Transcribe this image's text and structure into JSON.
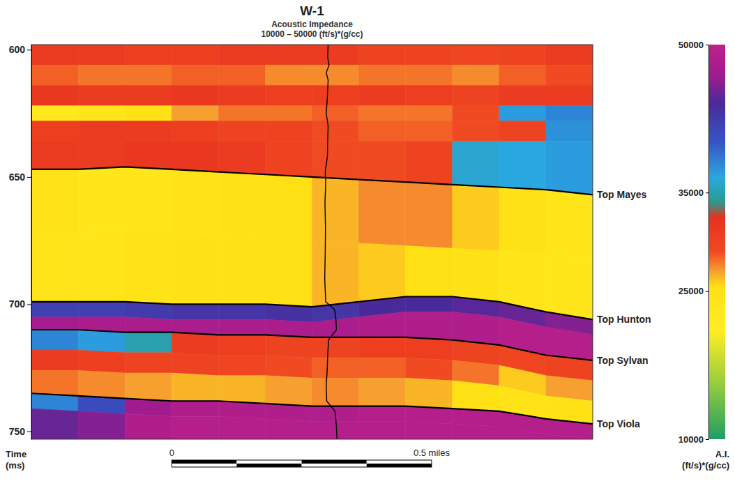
{
  "chart_data": {
    "type": "heatmap",
    "title": "W-1",
    "subtitle": [
      "Acoustic Impedance",
      "10000 – 50000 (ft/s)*(g/cc)"
    ],
    "y_label": [
      "Time",
      "(ms)"
    ],
    "ylim": [
      598,
      753
    ],
    "yticks": [
      600,
      650,
      700,
      750
    ],
    "xlim": [
      -0.27,
      0.81
    ],
    "x": [
      -0.27,
      -0.18,
      -0.09,
      0,
      0.09,
      0.18,
      0.27,
      0.36,
      0.45,
      0.54,
      0.63,
      0.72,
      0.81
    ],
    "layers": [
      {
        "top": [
          598,
          598,
          598,
          598,
          598,
          598,
          598,
          598,
          598,
          598,
          598,
          598,
          598
        ],
        "values": [
          31000,
          31000,
          30500,
          30500,
          31000,
          31000,
          31000,
          30000,
          30000,
          29500,
          30000,
          31000
        ]
      },
      {
        "top": [
          606,
          606,
          606,
          606,
          606,
          606,
          606,
          606,
          606,
          606,
          606,
          606,
          606
        ],
        "values": [
          28500,
          28000,
          28000,
          28500,
          28500,
          27500,
          27500,
          28000,
          28000,
          27500,
          28500,
          29000
        ]
      },
      {
        "top": [
          614,
          614,
          614,
          614,
          614,
          614,
          614,
          614,
          614,
          614,
          614,
          614,
          614
        ],
        "values": [
          31500,
          31000,
          31000,
          31500,
          31000,
          30500,
          30500,
          31000,
          30500,
          30000,
          31000,
          31000
        ]
      },
      {
        "top": [
          622,
          622,
          622,
          622,
          622,
          622,
          622,
          622,
          622,
          622,
          622,
          622,
          622
        ],
        "values": [
          23000,
          24000,
          25000,
          27000,
          28000,
          28000,
          28500,
          28000,
          28000,
          29000,
          37000,
          38000
        ]
      },
      {
        "top": [
          628,
          628,
          628,
          628,
          628,
          628,
          628,
          628,
          628,
          628,
          628,
          628,
          628
        ],
        "values": [
          30500,
          31000,
          31000,
          30500,
          30000,
          30000,
          29000,
          28500,
          28500,
          29000,
          30000,
          37500
        ]
      },
      {
        "top": [
          636,
          636,
          636,
          636,
          636,
          636,
          636,
          636,
          636,
          636,
          636,
          636,
          636
        ],
        "values": [
          31000,
          31000,
          31500,
          31500,
          31000,
          30000,
          29000,
          29000,
          30000,
          36000,
          36500,
          37000
        ]
      },
      {
        "top": [
          647,
          647,
          646,
          647,
          648,
          649,
          650,
          651,
          652,
          653,
          654,
          655,
          657
        ],
        "values": [
          24500,
          24000,
          24000,
          24500,
          25000,
          25500,
          26500,
          27500,
          27500,
          26000,
          25000,
          24000
        ]
      },
      {
        "top": [
          672,
          672,
          671,
          672,
          673,
          674,
          675,
          676,
          677,
          678,
          679,
          680,
          682
        ],
        "values": [
          24000,
          24000,
          24500,
          25000,
          25000,
          25500,
          26500,
          26000,
          25500,
          25000,
          24000,
          23500
        ]
      },
      {
        "top": [
          699,
          699,
          699,
          700,
          700,
          700,
          701,
          699,
          697,
          697,
          699,
          703,
          706
        ],
        "values": [
          42000,
          42000,
          42500,
          43000,
          43000,
          43500,
          43000,
          44000,
          44000,
          44500,
          45000,
          46000
        ]
      },
      {
        "top": [
          705,
          705,
          705,
          706,
          706,
          706,
          707,
          705,
          703,
          703,
          705,
          709,
          712
        ],
        "values": [
          47500,
          48000,
          48000,
          48000,
          48000,
          48000,
          48000,
          48500,
          48500,
          48500,
          49000,
          49000
        ]
      },
      {
        "top": [
          710,
          710,
          711,
          711,
          712,
          712,
          713,
          713,
          713,
          714,
          716,
          720,
          722
        ],
        "values": [
          38000,
          37000,
          35000,
          31000,
          30500,
          30000,
          30000,
          30500,
          30500,
          30000,
          29500,
          30000
        ]
      },
      {
        "top": [
          718,
          718,
          719,
          719,
          720,
          720,
          721,
          721,
          721,
          722,
          724,
          728,
          730
        ],
        "values": [
          31000,
          30500,
          30000,
          30000,
          29500,
          29000,
          28500,
          28500,
          29000,
          28000,
          26000,
          27000
        ]
      },
      {
        "top": [
          726,
          726,
          727,
          727,
          728,
          728,
          729,
          729,
          729,
          730,
          732,
          736,
          738
        ],
        "values": [
          28000,
          27500,
          27000,
          26500,
          26500,
          27000,
          27500,
          27000,
          26500,
          25500,
          24500,
          25000
        ]
      },
      {
        "top": [
          735,
          736,
          737,
          738,
          738,
          739,
          740,
          740,
          740,
          741,
          742,
          745,
          747
        ],
        "values": [
          38000,
          41000,
          47000,
          48500,
          48500,
          48500,
          48500,
          49000,
          49000,
          49000,
          49000,
          49000
        ]
      },
      {
        "top": [
          741,
          742,
          743,
          744,
          744,
          745,
          746,
          746,
          746,
          747,
          748,
          751,
          753
        ],
        "values": [
          45000,
          46000,
          48500,
          49000,
          49000,
          49000,
          49000,
          49000,
          49000,
          49000,
          49000,
          49000
        ]
      }
    ],
    "horizons": [
      {
        "name": "Top Mayes",
        "times": [
          647,
          647,
          646,
          647,
          648,
          649,
          650,
          651,
          652,
          653,
          654,
          655,
          657
        ]
      },
      {
        "name": "Top Hunton",
        "times": [
          699,
          699,
          699,
          700,
          700,
          700,
          701,
          699,
          697,
          697,
          699,
          703,
          706
        ]
      },
      {
        "name": "Top Sylvan",
        "times": [
          710,
          710,
          711,
          711,
          712,
          712,
          713,
          713,
          713,
          714,
          716,
          720,
          722
        ]
      },
      {
        "name": "Top Viola",
        "times": [
          735,
          736,
          737,
          738,
          738,
          739,
          740,
          740,
          740,
          741,
          742,
          745,
          747
        ]
      }
    ],
    "well": {
      "x": 0.3,
      "times": [
        598,
        603,
        606,
        609,
        612,
        616,
        620,
        625,
        630,
        636,
        642,
        648,
        652,
        660,
        670,
        680,
        690,
        699,
        702,
        706,
        710,
        714,
        720,
        726,
        732,
        738,
        742,
        748,
        753
      ],
      "values": [
        31000,
        30000,
        33000,
        27000,
        31000,
        30000,
        29000,
        27000,
        31000,
        30000,
        29500,
        25000,
        26000,
        24500,
        25500,
        25000,
        24000,
        26000,
        44000,
        47000,
        48000,
        32000,
        30000,
        29000,
        27000,
        28000,
        45000,
        48000,
        49000
      ]
    },
    "colorbar": {
      "range": [
        10000,
        50000
      ],
      "ticks": [
        10000,
        25000,
        35000,
        50000
      ],
      "label": [
        "A.I.",
        "(ft/s)*(g/cc)"
      ]
    },
    "colorscale": [
      [
        10000,
        "#1f9e64"
      ],
      [
        16000,
        "#9fcf3c"
      ],
      [
        21000,
        "#ffee22"
      ],
      [
        25500,
        "#ffe014"
      ],
      [
        27000,
        "#f7a030"
      ],
      [
        29000,
        "#f04a22"
      ],
      [
        32500,
        "#e8301e"
      ],
      [
        34000,
        "#2a9a8c"
      ],
      [
        36500,
        "#29a8e0"
      ],
      [
        40000,
        "#3556c8"
      ],
      [
        44000,
        "#4a2a9a"
      ],
      [
        47000,
        "#a01c8e"
      ],
      [
        50000,
        "#c0208a"
      ]
    ],
    "scale_bar": {
      "ticks": [
        0,
        {
          "value": 0.5,
          "label": "0.5 miles"
        }
      ],
      "segment": 0.125
    }
  }
}
